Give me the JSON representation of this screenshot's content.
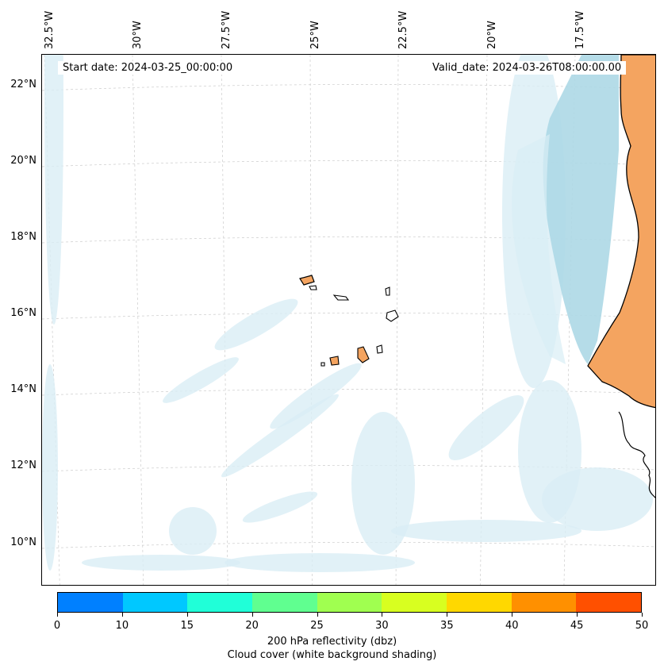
{
  "map": {
    "start_date": "Start date: 2024-03-25_00:00:00",
    "valid_date": "Valid_date: 2024-03-26T08:00:00.00",
    "longitude_labels": [
      "32.5°W",
      "30°W",
      "27.5°W",
      "25°W",
      "22.5°W",
      "20°W",
      "17.5°W"
    ],
    "latitude_labels": [
      "22°N",
      "20°N",
      "18°N",
      "16°N",
      "14°N",
      "12°N",
      "10°N"
    ],
    "colors": {
      "land": "#f4a460",
      "coast_water_shading": "#add8e6",
      "cloud_shading": "#d9eef5",
      "gridline": "#cccccc"
    }
  },
  "colorbar": {
    "ticks": [
      "0",
      "10",
      "15",
      "20",
      "25",
      "30",
      "35",
      "40",
      "45",
      "50"
    ],
    "colors": [
      "#0080ff",
      "#00c8ff",
      "#20ffd8",
      "#60ff90",
      "#a0ff50",
      "#d8ff20",
      "#ffd800",
      "#ff9000",
      "#ff5000"
    ],
    "label": "200 hPa reflectivity (dbz)",
    "sublabel": "Cloud cover (white background shading)"
  }
}
